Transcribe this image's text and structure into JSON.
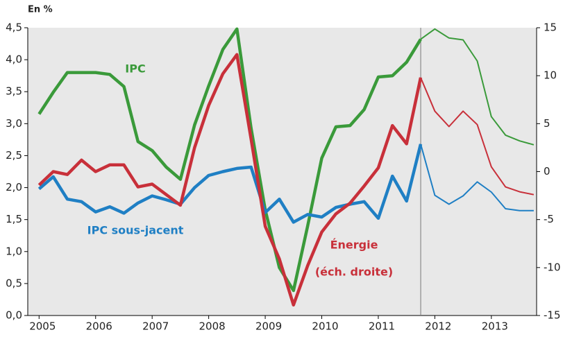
{
  "chart_data": {
    "type": "line",
    "y_label": "En %",
    "x": [
      2005.0,
      2005.25,
      2005.5,
      2005.75,
      2006.0,
      2006.25,
      2006.5,
      2006.75,
      2007.0,
      2007.25,
      2007.5,
      2007.75,
      2008.0,
      2008.25,
      2008.5,
      2008.75,
      2009.0,
      2009.25,
      2009.5,
      2009.75,
      2010.0,
      2010.25,
      2010.5,
      2010.75,
      2011.0,
      2011.25,
      2011.5,
      2011.75,
      2012.0,
      2012.25,
      2012.5,
      2012.75,
      2013.0,
      2013.25,
      2013.5,
      2013.75
    ],
    "series": [
      {
        "name": "IPC",
        "color": "#3a9a3a",
        "axis": "y",
        "values": [
          3.15,
          3.49,
          3.8,
          3.8,
          3.8,
          3.77,
          3.58,
          2.72,
          2.58,
          2.32,
          2.13,
          2.98,
          3.59,
          4.16,
          4.48,
          2.93,
          1.65,
          0.75,
          0.39,
          1.4,
          2.46,
          2.95,
          2.97,
          3.22,
          3.73,
          3.75,
          3.96,
          4.32,
          4.48,
          4.34,
          4.31,
          3.98,
          3.11,
          2.82,
          2.73,
          2.67
        ]
      },
      {
        "name": "IPC sous-jacent",
        "color": "#1f7fc4",
        "axis": "y",
        "values": [
          1.98,
          2.17,
          1.82,
          1.78,
          1.62,
          1.7,
          1.6,
          1.76,
          1.87,
          1.81,
          1.74,
          2.0,
          2.19,
          2.25,
          2.3,
          2.32,
          1.61,
          1.82,
          1.46,
          1.58,
          1.54,
          1.69,
          1.74,
          1.78,
          1.52,
          2.18,
          1.79,
          2.68,
          1.88,
          1.74,
          1.87,
          2.09,
          1.93,
          1.67,
          1.64,
          1.64
        ]
      },
      {
        "name": "Énergie",
        "annotation": "(éch. droite)",
        "color": "#c8303a",
        "axis": "y2",
        "values": [
          -1.4,
          0,
          -0.3,
          1.2,
          0,
          0.7,
          0.7,
          -1.6,
          -1.3,
          -2.4,
          -3.5,
          2.5,
          6.9,
          10.2,
          12.2,
          3.4,
          -5.7,
          -9.1,
          -13.9,
          -9.8,
          -6.3,
          -4.4,
          -3.3,
          -1.5,
          0.4,
          4.8,
          2.9,
          9.8,
          6.3,
          4.7,
          6.3,
          4.9,
          0.5,
          -1.6,
          -2.1,
          -2.4
        ]
      }
    ],
    "forecast_start": 2011.75,
    "xlim": [
      2004.8,
      2013.8
    ],
    "xticks": [
      2005,
      2006,
      2007,
      2008,
      2009,
      2010,
      2011,
      2012,
      2013
    ],
    "ylim": [
      0,
      4.5
    ],
    "yticks": [
      {
        "value": 0,
        "label": "0,0"
      },
      {
        "value": 0.5,
        "label": "0,5"
      },
      {
        "value": 1,
        "label": "1,0"
      },
      {
        "value": 1.5,
        "label": "1,5"
      },
      {
        "value": 2,
        "label": "2,0"
      },
      {
        "value": 2.5,
        "label": "2,5"
      },
      {
        "value": 3,
        "label": "3,0"
      },
      {
        "value": 3.5,
        "label": "3,5"
      },
      {
        "value": 4,
        "label": "4,0"
      },
      {
        "value": 4.5,
        "label": "4,5"
      }
    ],
    "y2lim": [
      -15,
      15
    ],
    "y2ticks": [
      -15,
      -10,
      -5,
      0,
      5,
      10,
      15
    ]
  }
}
